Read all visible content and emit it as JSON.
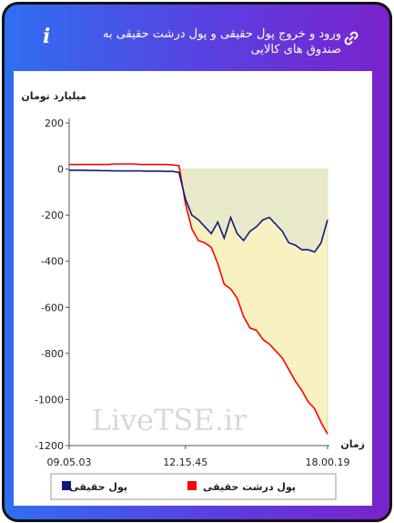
{
  "chart_data": {
    "type": "line",
    "title": "ورود و خروج پول حقیقی و پول درشت حقیقی به صندوق های کالایی",
    "y_label": "میلیارد تومان",
    "x_label": "زمان",
    "categories": [
      "09.05.03",
      null,
      null,
      null,
      null,
      null,
      null,
      null,
      null,
      null,
      null,
      null,
      null,
      null,
      null,
      null,
      null,
      null,
      "12.15.45",
      null,
      null,
      null,
      null,
      null,
      null,
      null,
      null,
      null,
      null,
      null,
      null,
      null,
      null,
      null,
      null,
      null,
      null,
      null,
      null,
      null,
      "18.00.19"
    ],
    "series": [
      {
        "name": "پول حقیقی",
        "color": "#0d1a80",
        "values": [
          -5,
          -5,
          -5,
          -6,
          -6,
          -7,
          -7,
          -8,
          -8,
          -8,
          -8,
          -8,
          -9,
          -9,
          -9,
          -10,
          -10,
          -15,
          -130,
          -200,
          -220,
          -250,
          -280,
          -230,
          -300,
          -210,
          -280,
          -310,
          -270,
          -250,
          -220,
          -210,
          -240,
          -270,
          -320,
          -330,
          -350,
          -350,
          -360,
          -320,
          -220
        ]
      },
      {
        "name": "پول درشت حقیقی",
        "color": "#ff0000",
        "values": [
          20,
          20,
          20,
          20,
          20,
          20,
          20,
          22,
          22,
          22,
          22,
          20,
          20,
          20,
          20,
          20,
          18,
          15,
          -150,
          -260,
          -310,
          -320,
          -340,
          -410,
          -500,
          -520,
          -560,
          -640,
          -690,
          -700,
          -740,
          -760,
          -790,
          -820,
          -870,
          -920,
          -960,
          -1010,
          -1040,
          -1100,
          -1150
        ]
      }
    ],
    "ylim": [
      -1200,
      200
    ],
    "yticks": [
      200,
      0,
      -200,
      -400,
      -600,
      -800,
      -1000,
      -1200
    ]
  },
  "watermark": "LiveTSE.ir"
}
